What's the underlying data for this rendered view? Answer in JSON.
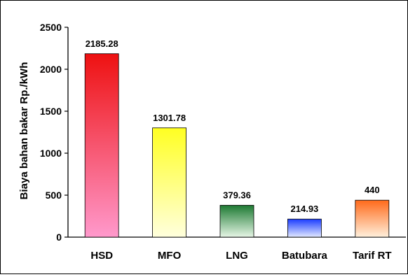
{
  "chart_data": {
    "type": "bar",
    "title": "",
    "xlabel": "",
    "ylabel": "Biaya bahan bakar Rp./kWh",
    "ylim": [
      0,
      2500
    ],
    "yticks": [
      0,
      500,
      1000,
      1500,
      2000,
      2500
    ],
    "grid": false,
    "legend": "none",
    "categories": [
      "HSD",
      "MFO",
      "LNG",
      "Batubara",
      "Tarif RT"
    ],
    "values": [
      2185.28,
      1301.78,
      379.36,
      214.93,
      440
    ],
    "value_labels": [
      "2185.28",
      "1301.78",
      "379.36",
      "214.93",
      "440"
    ],
    "bar_colors": [
      {
        "top": "#ee1111",
        "bottom": "#ff99cc"
      },
      {
        "top": "#ffff22",
        "bottom": "#ffffdd"
      },
      {
        "top": "#1d7a32",
        "bottom": "#e6f6e6"
      },
      {
        "top": "#1c3dff",
        "bottom": "#e2e9ff"
      },
      {
        "top": "#ff6a1a",
        "bottom": "#fff0dc"
      }
    ]
  }
}
